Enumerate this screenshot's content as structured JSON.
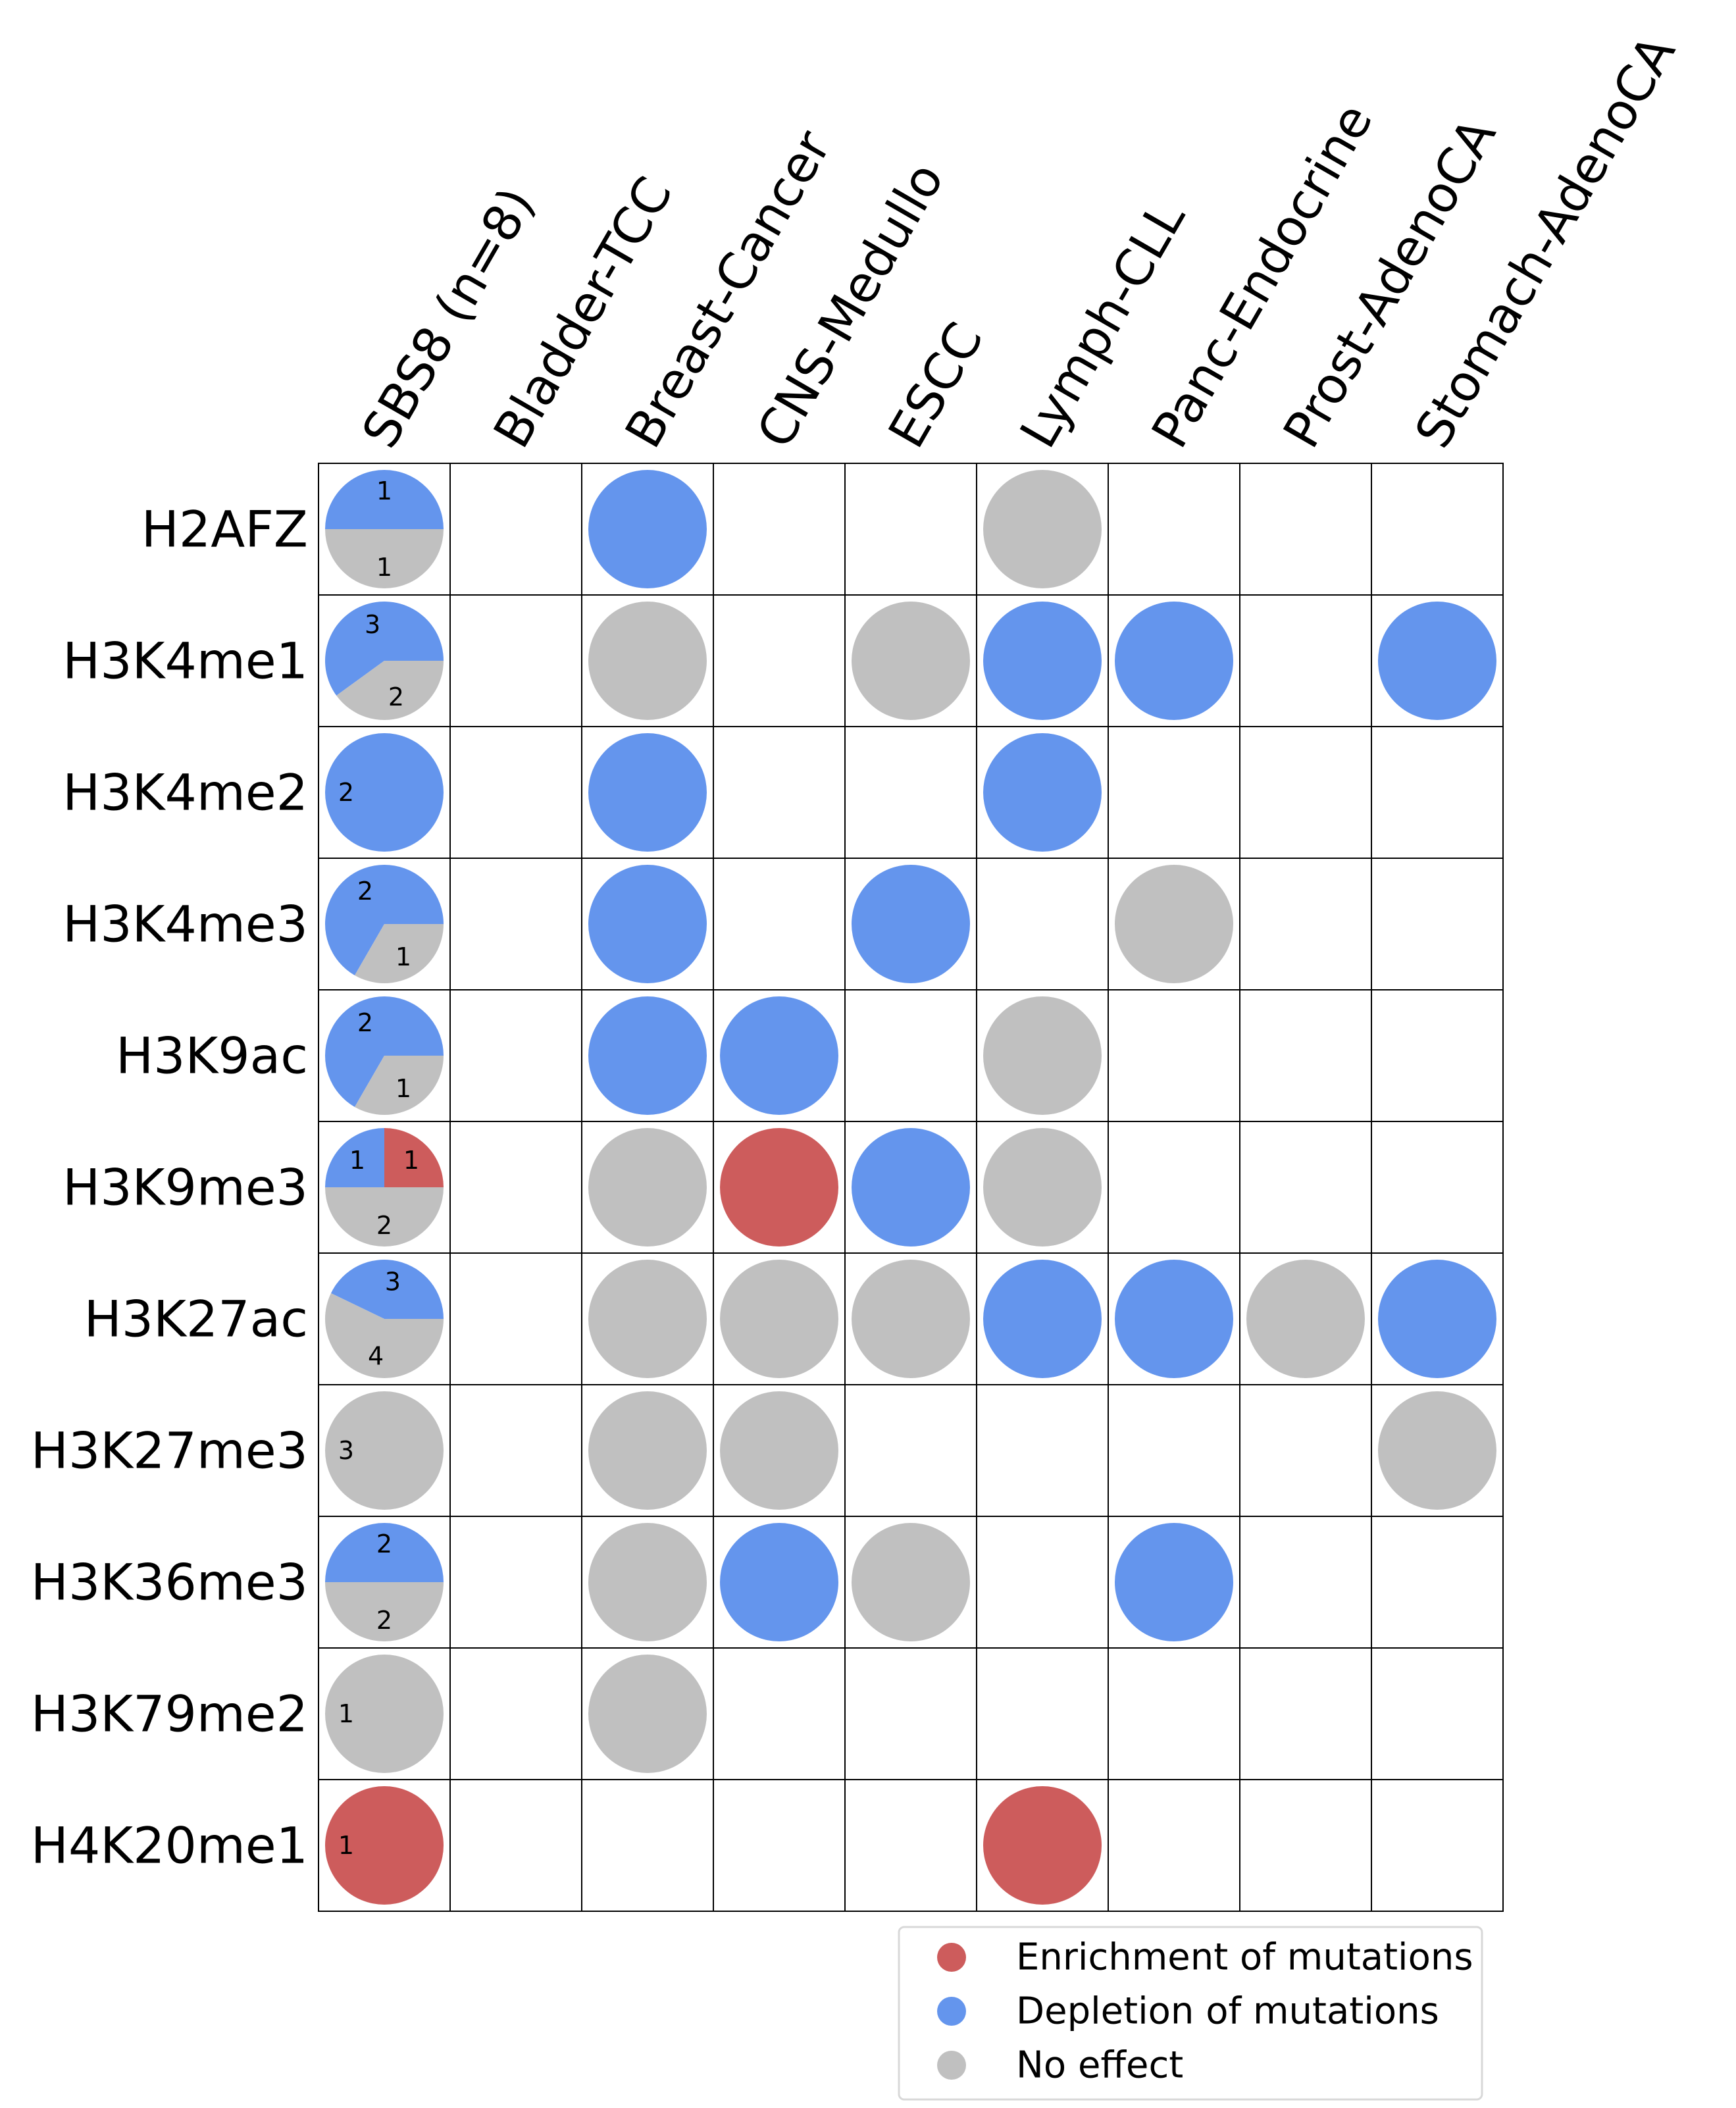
{
  "chart_data": {
    "type": "table",
    "columns": [
      "SBS8 (n=8)",
      "Bladder-TCC",
      "Breast-Cancer",
      "CNS-Medullo",
      "ESCC",
      "Lymph-CLL",
      "Panc-Endocrine",
      "Prost-AdenoCA",
      "Stomach-AdenoCA"
    ],
    "rows": [
      "H2AFZ",
      "H3K4me1",
      "H3K4me2",
      "H3K4me3",
      "H3K9ac",
      "H3K9me3",
      "H3K27ac",
      "H3K27me3",
      "H3K36me3",
      "H3K79me2",
      "H4K20me1"
    ],
    "summary_pies": [
      {
        "enrichment": 0,
        "depletion": 1,
        "no_effect": 1
      },
      {
        "enrichment": 0,
        "depletion": 3,
        "no_effect": 2
      },
      {
        "enrichment": 0,
        "depletion": 2,
        "no_effect": 0
      },
      {
        "enrichment": 0,
        "depletion": 2,
        "no_effect": 1
      },
      {
        "enrichment": 0,
        "depletion": 2,
        "no_effect": 1
      },
      {
        "enrichment": 1,
        "depletion": 1,
        "no_effect": 2
      },
      {
        "enrichment": 0,
        "depletion": 3,
        "no_effect": 4
      },
      {
        "enrichment": 0,
        "depletion": 0,
        "no_effect": 3
      },
      {
        "enrichment": 0,
        "depletion": 2,
        "no_effect": 2
      },
      {
        "enrichment": 0,
        "depletion": 0,
        "no_effect": 1
      },
      {
        "enrichment": 1,
        "depletion": 0,
        "no_effect": 0
      }
    ],
    "cells": [
      [
        null,
        "depletion",
        null,
        null,
        "no_effect",
        null,
        null,
        null
      ],
      [
        null,
        "no_effect",
        null,
        "no_effect",
        "depletion",
        "depletion",
        null,
        "depletion"
      ],
      [
        null,
        "depletion",
        null,
        null,
        "depletion",
        null,
        null,
        null
      ],
      [
        null,
        "depletion",
        null,
        "depletion",
        null,
        "no_effect",
        null,
        null
      ],
      [
        null,
        "depletion",
        "depletion",
        null,
        "no_effect",
        null,
        null,
        null
      ],
      [
        null,
        "no_effect",
        "enrichment",
        "depletion",
        "no_effect",
        null,
        null,
        null
      ],
      [
        null,
        "no_effect",
        "no_effect",
        "no_effect",
        "depletion",
        "depletion",
        "no_effect",
        "depletion"
      ],
      [
        null,
        "no_effect",
        "no_effect",
        null,
        null,
        null,
        null,
        "no_effect"
      ],
      [
        null,
        "no_effect",
        "depletion",
        "no_effect",
        null,
        "depletion",
        null,
        null
      ],
      [
        null,
        "no_effect",
        null,
        null,
        null,
        null,
        null,
        null
      ],
      [
        null,
        null,
        null,
        null,
        "enrichment",
        null,
        null,
        null
      ]
    ],
    "legend": [
      {
        "key": "enrichment",
        "label": "Enrichment of mutations"
      },
      {
        "key": "depletion",
        "label": "Depletion of mutations"
      },
      {
        "key": "no_effect",
        "label": "No effect"
      }
    ],
    "legend_position": "bottom-right",
    "colors": {
      "enrichment": "#cd5c5c",
      "depletion": "#6495ed",
      "no_effect": "#c0c0c0"
    }
  }
}
